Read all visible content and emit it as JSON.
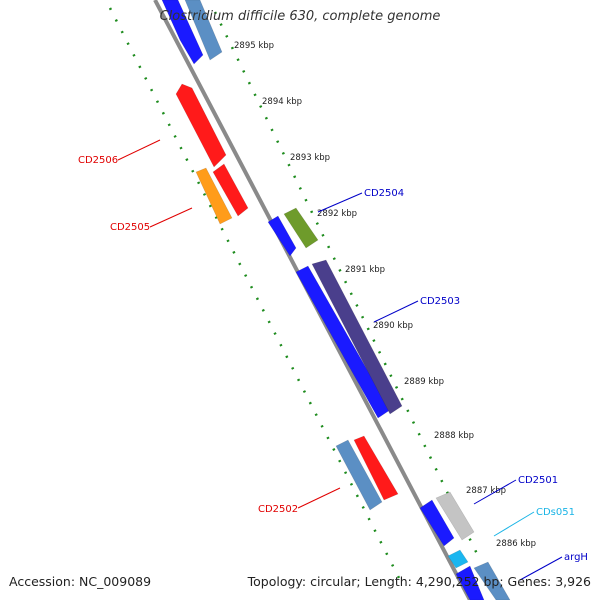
{
  "title": "Clostridium difficile 630, complete genome",
  "footer": {
    "accession": "Accession: NC_009089",
    "summary": "Topology: circular; Length: 4,290,252 bp; Genes: 3,926"
  },
  "ticks": [
    {
      "label": "2895 kbp"
    },
    {
      "label": "2894 kbp"
    },
    {
      "label": "2893 kbp"
    },
    {
      "label": "2892 kbp"
    },
    {
      "label": "2891 kbp"
    },
    {
      "label": "2890 kbp"
    },
    {
      "label": "2889 kbp"
    },
    {
      "label": "2888 kbp"
    },
    {
      "label": "2887 kbp"
    },
    {
      "label": "2886 kbp"
    }
  ],
  "gene_labels": [
    {
      "label": "CD2506",
      "color": "#e00000"
    },
    {
      "label": "CD2505",
      "color": "#e00000"
    },
    {
      "label": "CD2504",
      "color": "#0000c8"
    },
    {
      "label": "CD2503",
      "color": "#0000c8"
    },
    {
      "label": "CD2502",
      "color": "#e00000"
    },
    {
      "label": "CD2501",
      "color": "#0000c8"
    },
    {
      "label": "CDs051",
      "color": "#19b4e6"
    },
    {
      "label": "argH",
      "color": "#0000c8"
    }
  ],
  "colors": {
    "backbone": "#8a8a8a",
    "tick_dots": "#1e8c1e",
    "red": "#ff1a1a",
    "orange": "#ff9c1a",
    "blue": "#1a1aff",
    "steelblue": "#5b8fc4",
    "navy": "#4a3f8c",
    "olive": "#6e9b2b",
    "grey": "#c4c4c4",
    "cyan": "#1ab6f0"
  }
}
